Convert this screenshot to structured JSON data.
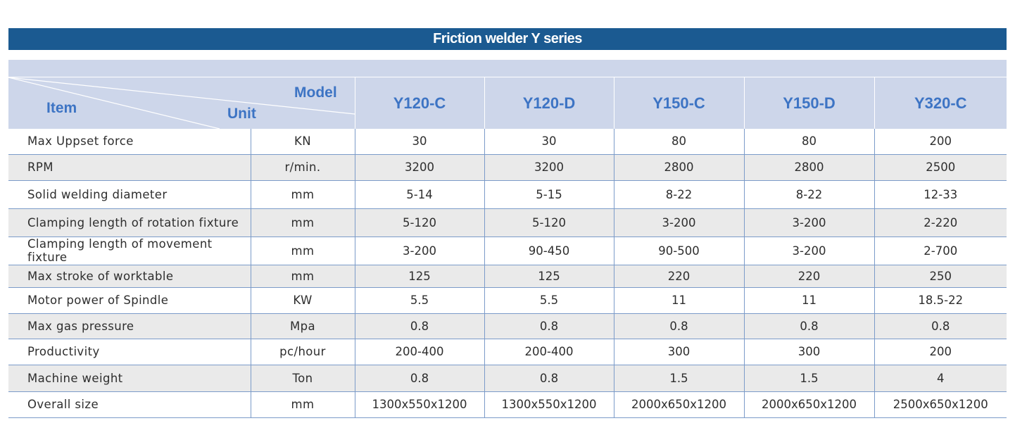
{
  "title": "Friction welder Y series",
  "header": {
    "item_label": "Item",
    "model_label": "Model",
    "unit_label": "Unit",
    "models": [
      "Y120-C",
      "Y120-D",
      "Y150-C",
      "Y150-D",
      "Y320-C"
    ]
  },
  "rows": [
    {
      "item": "Max Uppset force",
      "unit": "KN",
      "values": [
        "30",
        "30",
        "80",
        "80",
        "200"
      ]
    },
    {
      "item": "RPM",
      "unit": "r/min.",
      "values": [
        "3200",
        "3200",
        "2800",
        "2800",
        "2500"
      ]
    },
    {
      "item": "Solid welding diameter",
      "unit": "mm",
      "values": [
        "5-14",
        "5-15",
        "8-22",
        "8-22",
        "12-33"
      ]
    },
    {
      "item": "Clamping length of rotation fixture",
      "unit": "mm",
      "values": [
        "5-120",
        "5-120",
        "3-200",
        "3-200",
        "2-220"
      ]
    },
    {
      "item": "Clamping length of movement fixture",
      "unit": "mm",
      "values": [
        "3-200",
        "90-450",
        "90-500",
        "3-200",
        "2-700"
      ]
    },
    {
      "item": "Max stroke of worktable",
      "unit": "mm",
      "values": [
        "125",
        "125",
        "220",
        "220",
        "250"
      ]
    },
    {
      "item": "Motor power of Spindle",
      "unit": "KW",
      "values": [
        "5.5",
        "5.5",
        "11",
        "11",
        "18.5-22"
      ]
    },
    {
      "item": "Max gas pressure",
      "unit": "Mpa",
      "values": [
        "0.8",
        "0.8",
        "0.8",
        "0.8",
        "0.8"
      ]
    },
    {
      "item": "Productivity",
      "unit": "pc/hour",
      "values": [
        "200-400",
        "200-400",
        "300",
        "300",
        "200"
      ]
    },
    {
      "item": "Machine weight",
      "unit": "Ton",
      "values": [
        "0.8",
        "0.8",
        "1.5",
        "1.5",
        "4"
      ]
    },
    {
      "item": "Overall size",
      "unit": "mm",
      "values": [
        "1300x550x1200",
        "1300x550x1200",
        "2000x650x1200",
        "2000x650x1200",
        "2500x650x1200"
      ]
    }
  ],
  "colors": {
    "title_bar": "#1b5a91",
    "header_band": "#cdd6ea",
    "header_text": "#3d74c4",
    "row_alt": "#eaeaea",
    "grid_line": "#7b9bc9"
  }
}
